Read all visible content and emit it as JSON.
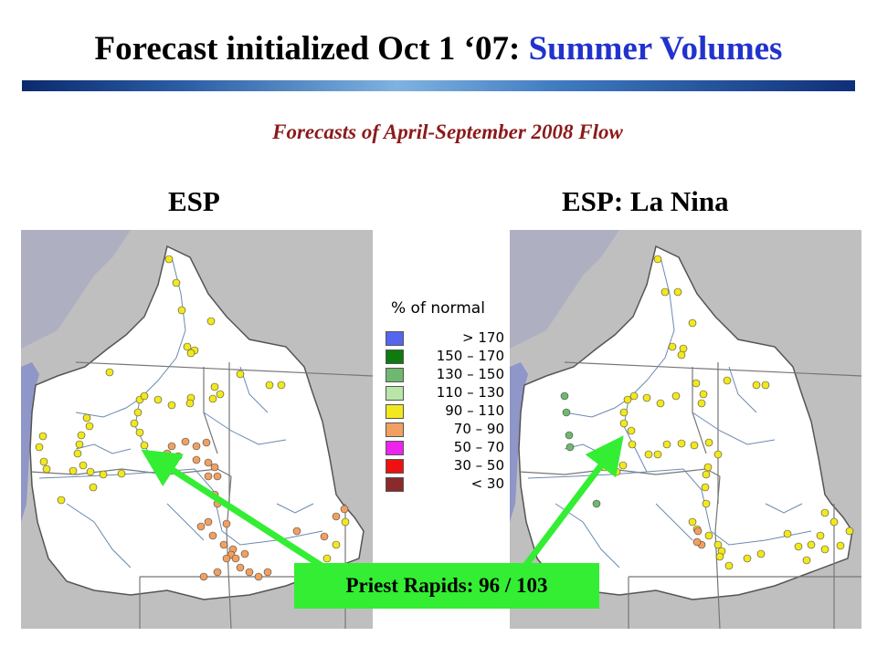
{
  "title": {
    "main": "Forecast initialized Oct 1 ‘07:",
    "accent": "Summer Volumes"
  },
  "subtitle": "Forecasts of April-September 2008 Flow",
  "maps": {
    "left_label": "ESP",
    "right_label": "ESP: La Nina"
  },
  "legend": {
    "title": "% of normal",
    "items": [
      {
        "range": "> 170",
        "color": "#5566ee"
      },
      {
        "range": "150 – 170",
        "color": "#0f7a0f"
      },
      {
        "range": "130 – 150",
        "color": "#6fb86f"
      },
      {
        "range": "110 – 130",
        "color": "#b8e6a8"
      },
      {
        "range": "90 – 110",
        "color": "#f2e81e"
      },
      {
        "range": "70 – 90",
        "color": "#f0a060"
      },
      {
        "range": "50 – 70",
        "color": "#ee22ee"
      },
      {
        "range": "30 – 50",
        "color": "#ee1111"
      },
      {
        "range": "< 30",
        "color": "#8b2a2a"
      }
    ]
  },
  "callout": "Priest Rapids:  96 / 103",
  "colors": {
    "title_accent": "#2233cc",
    "subtitle": "#8b1a1a",
    "callout": "#33ee33",
    "ocean": "#8f96c8",
    "land": "#bfbfbf",
    "basin": "#ffffff",
    "river": "#6a8ab0",
    "border": "#777777"
  }
}
